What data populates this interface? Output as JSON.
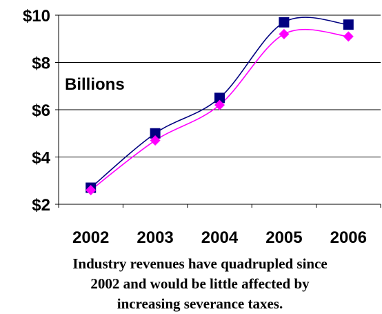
{
  "chart_data": {
    "type": "line",
    "categories": [
      "2002",
      "2003",
      "2004",
      "2005",
      "2006"
    ],
    "series": [
      {
        "color": "#000080",
        "marker": "square",
        "values": [
          2.7,
          5.0,
          6.5,
          9.7,
          9.6
        ]
      },
      {
        "color": "#FF00FF",
        "marker": "diamond",
        "values": [
          2.6,
          4.7,
          6.2,
          9.2,
          9.1
        ]
      }
    ],
    "ylim": [
      2,
      10
    ],
    "yticks": [
      2,
      4,
      6,
      8,
      10
    ],
    "ytick_labels": [
      "$2",
      "$4",
      "$6",
      "$8",
      "$10"
    ],
    "annotation": "Billions",
    "grid": true,
    "smoothed": true
  },
  "caption": {
    "line1": "Industry revenues have quadrupled since",
    "line2": "2002 and would be little affected by",
    "line3": "increasing severance taxes."
  }
}
